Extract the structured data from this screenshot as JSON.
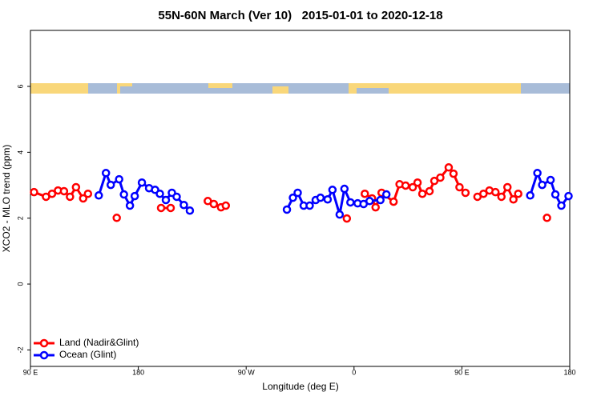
{
  "chart_data": {
    "type": "line",
    "title": "55N-60N March (Ver 10)   2015-01-01 to 2020-12-18",
    "xlabel": "Longitude (deg E)",
    "ylabel": "XCO2 - MLO trend (ppm)",
    "xlim": [
      -270,
      180
    ],
    "ylim": [
      -2.5,
      7.7
    ],
    "xticks": [
      {
        "value": -270,
        "label": "90 E"
      },
      {
        "value": -180,
        "label": "180"
      },
      {
        "value": -90,
        "label": "90 W"
      },
      0,
      {
        "value": 90,
        "label": "90 E"
      },
      180
    ],
    "yticks": [
      -2,
      0,
      2,
      4,
      6
    ],
    "legend": "bottom-left",
    "series": [
      {
        "name": "Land (Nadir&Glint)",
        "color": "#ff0000",
        "x": [
          -267,
          -257,
          -252,
          -247,
          -242,
          -237,
          -232,
          -226,
          -222,
          null,
          -198,
          null,
          -161,
          -153,
          null,
          -122,
          -117,
          -111,
          -107,
          null,
          -6,
          null,
          9,
          15,
          18,
          23,
          33,
          38,
          43,
          49,
          53,
          57,
          63,
          67,
          72,
          79,
          83,
          88,
          93,
          null,
          103,
          108,
          113,
          118,
          123,
          128,
          133,
          137,
          null,
          161
        ],
        "values": [
          2.79,
          2.65,
          2.74,
          2.84,
          2.82,
          2.65,
          2.94,
          2.6,
          2.74,
          null,
          2.01,
          null,
          2.31,
          2.31,
          null,
          2.52,
          2.43,
          2.33,
          2.38,
          null,
          1.99,
          null,
          2.74,
          2.6,
          2.33,
          2.77,
          2.5,
          3.03,
          2.99,
          2.94,
          3.08,
          2.74,
          2.82,
          3.13,
          3.23,
          3.54,
          3.35,
          2.94,
          2.77,
          null,
          2.65,
          2.74,
          2.84,
          2.79,
          2.65,
          2.94,
          2.57,
          2.74,
          null,
          2.01
        ]
      },
      {
        "name": "Ocean (Glint)",
        "color": "#0000ff",
        "x": [
          -213,
          -207,
          -203,
          -196,
          -192,
          -187,
          -183,
          -177,
          -171,
          -166,
          -162,
          -157,
          -152,
          -148,
          -142,
          -137,
          null,
          -56,
          -51,
          -47,
          -42,
          -37,
          -32,
          -28,
          -22,
          -18,
          -12,
          -8,
          -3,
          3,
          8,
          13,
          22,
          27,
          null,
          147,
          153,
          157,
          164,
          168,
          173,
          179
        ],
        "values": [
          2.69,
          3.37,
          3.01,
          3.18,
          2.72,
          2.38,
          2.67,
          3.08,
          2.91,
          2.86,
          2.74,
          2.55,
          2.77,
          2.65,
          2.4,
          2.23,
          null,
          2.26,
          2.62,
          2.77,
          2.38,
          2.38,
          2.55,
          2.62,
          2.57,
          2.86,
          2.11,
          2.89,
          2.48,
          2.45,
          2.43,
          2.52,
          2.55,
          2.72,
          null,
          2.69,
          3.37,
          3.01,
          3.16,
          2.72,
          2.38,
          2.67
        ]
      }
    ]
  }
}
